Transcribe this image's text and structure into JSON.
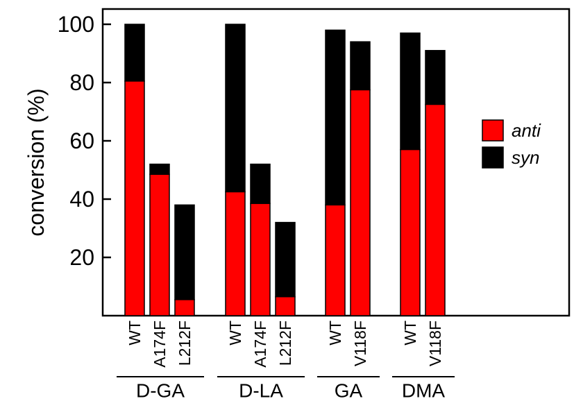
{
  "chart_data": {
    "type": "bar",
    "stacked": true,
    "title": "",
    "ylabel": "conversion (%)",
    "xlabel": "",
    "ylim": [
      0,
      105
    ],
    "yticks": [
      20,
      40,
      60,
      80,
      100
    ],
    "grid": false,
    "legend_position": "right",
    "groups": [
      {
        "name": "D-GA",
        "categories": [
          "WT",
          "A174F",
          "L212F"
        ]
      },
      {
        "name": "D-LA",
        "categories": [
          "WT",
          "A174F",
          "L212F"
        ]
      },
      {
        "name": "GA",
        "categories": [
          "WT",
          "V118F"
        ]
      },
      {
        "name": "DMA",
        "categories": [
          "WT",
          "V118F"
        ]
      }
    ],
    "series": [
      {
        "name": "anti",
        "color": "#ff0000",
        "values": [
          80.5,
          48.5,
          5.5,
          42.5,
          38.5,
          6.5,
          38,
          77.5,
          57,
          72.5
        ]
      },
      {
        "name": "syn",
        "color": "#000000",
        "values": [
          19.5,
          3.5,
          32.5,
          57.5,
          13.5,
          25.5,
          60,
          16.5,
          40,
          18.5
        ]
      }
    ]
  }
}
